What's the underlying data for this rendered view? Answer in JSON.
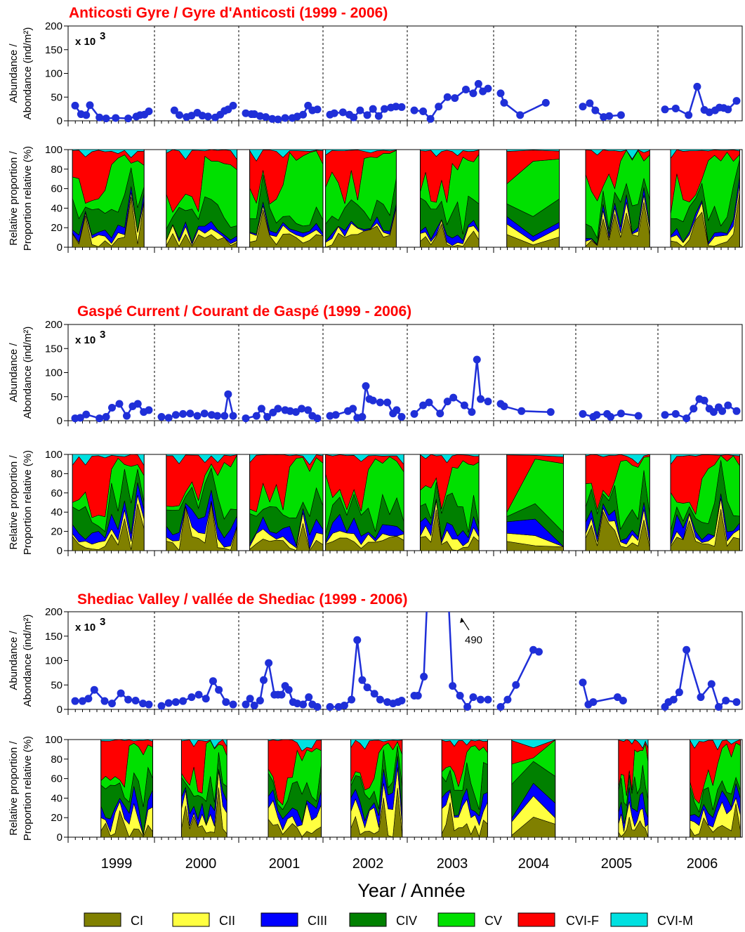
{
  "colors": {
    "CI": "#808000",
    "CII": "#ffff40",
    "CIII": "#0000ff",
    "CIV": "#008000",
    "CV": "#00e000",
    "CVI-F": "#ff0000",
    "CVI-M": "#00e0e0",
    "line": "#1f2fd8",
    "title": "#ff0000"
  },
  "chart_data": {
    "type": "line",
    "years": [
      "1999",
      "2000",
      "2001",
      "2002",
      "2003",
      "2004",
      "2005",
      "2006"
    ],
    "xlabel": "Year / Année",
    "abundance_ylabel": [
      "Abundance /",
      "Abondance (ind/m²)"
    ],
    "proportion_ylabel": [
      "Relative proportion /",
      "Proportion relative (%)"
    ],
    "abundance_ylim": [
      0,
      200
    ],
    "abundance_yticks": [
      "0",
      "50",
      "100",
      "150",
      "200"
    ],
    "proportion_ylim": [
      0,
      100
    ],
    "proportion_yticks": [
      "0",
      "20",
      "40",
      "60",
      "80",
      "100"
    ],
    "multiplier": "x 10",
    "multiplier_exp": "3",
    "legend": [
      "CI",
      "CII",
      "CIII",
      "CIV",
      "CV",
      "CVI-F",
      "CVI-M"
    ],
    "panels": [
      {
        "title": "Anticosti Gyre / Gyre d'Anticosti (1999 - 2006)",
        "abundance": [
          {
            "year": "1999",
            "x": [
              0.0,
              0.08,
              0.15,
              0.2,
              0.33,
              0.42,
              0.55,
              0.72,
              0.83,
              0.88,
              0.94,
              1.0
            ],
            "y": [
              32,
              14,
              12,
              33,
              7,
              5,
              6,
              5,
              9,
              12,
              13,
              20
            ]
          },
          {
            "year": "2000",
            "x": [
              0.18,
              0.25,
              0.35,
              0.42,
              0.5,
              0.57,
              0.65,
              0.75,
              0.82,
              0.88,
              0.93,
              1.0
            ],
            "y": [
              22,
              12,
              8,
              11,
              17,
              11,
              9,
              7,
              13,
              21,
              24,
              32
            ]
          },
          {
            "year": "2001",
            "x": [
              0.0,
              0.08,
              0.12,
              0.2,
              0.28,
              0.37,
              0.45,
              0.55,
              0.65,
              0.72,
              0.8,
              0.87,
              0.93,
              1.0
            ],
            "y": [
              16,
              14,
              14,
              10,
              8,
              4,
              3,
              6,
              6,
              9,
              13,
              32,
              22,
              24
            ]
          },
          {
            "year": "2002",
            "x": [
              0.0,
              0.06,
              0.18,
              0.27,
              0.33,
              0.42,
              0.52,
              0.6,
              0.68,
              0.76,
              0.85,
              0.92,
              1.0
            ],
            "y": [
              13,
              16,
              18,
              13,
              7,
              22,
              12,
              25,
              10,
              25,
              28,
              30,
              29
            ]
          },
          {
            "year": "2003",
            "x": [
              0.0,
              0.12,
              0.22,
              0.33,
              0.45,
              0.55,
              0.7,
              0.8,
              0.87,
              0.93,
              1.0
            ],
            "y": [
              22,
              20,
              4,
              30,
              50,
              48,
              66,
              58,
              78,
              62,
              68
            ]
          },
          {
            "year": "2004",
            "x": [
              0.0,
              0.05,
              0.28,
              0.65
            ],
            "y": [
              58,
              38,
              12,
              38
            ]
          },
          {
            "year": "2005",
            "x": [
              0.0,
              0.1,
              0.18,
              0.3,
              0.38,
              0.55
            ],
            "y": [
              30,
              37,
              22,
              8,
              10,
              12
            ]
          },
          {
            "year": "2006",
            "x": [
              0.0,
              0.15,
              0.33,
              0.45,
              0.55,
              0.62,
              0.7,
              0.76,
              0.82,
              0.88,
              1.0
            ],
            "y": [
              24,
              26,
              12,
              72,
              23,
              18,
              22,
              28,
              27,
              24,
              42
            ]
          }
        ]
      },
      {
        "title": "Gaspé Current / Courant de Gaspé (1999 - 2006)",
        "abundance": [
          {
            "year": "1999",
            "x": [
              0.0,
              0.07,
              0.15,
              0.33,
              0.42,
              0.5,
              0.6,
              0.7,
              0.78,
              0.85,
              0.93,
              1.0
            ],
            "y": [
              5,
              6,
              13,
              5,
              8,
              27,
              35,
              10,
              30,
              35,
              18,
              22
            ]
          },
          {
            "year": "2000",
            "x": [
              0.0,
              0.1,
              0.2,
              0.3,
              0.4,
              0.5,
              0.6,
              0.7,
              0.78,
              0.88,
              0.93,
              1.0
            ],
            "y": [
              8,
              6,
              12,
              14,
              15,
              10,
              15,
              12,
              10,
              10,
              55,
              10
            ]
          },
          {
            "year": "2001",
            "x": [
              0.0,
              0.15,
              0.22,
              0.3,
              0.38,
              0.45,
              0.55,
              0.62,
              0.7,
              0.78,
              0.87,
              0.93,
              1.0
            ],
            "y": [
              5,
              10,
              25,
              8,
              17,
              25,
              22,
              20,
              18,
              25,
              22,
              10,
              5
            ]
          },
          {
            "year": "2002",
            "x": [
              0.0,
              0.08,
              0.25,
              0.32,
              0.38,
              0.45,
              0.5,
              0.55,
              0.6,
              0.7,
              0.8,
              0.88,
              0.93,
              1.0
            ],
            "y": [
              10,
              12,
              20,
              25,
              6,
              8,
              72,
              45,
              42,
              38,
              38,
              15,
              22,
              8
            ]
          },
          {
            "year": "2003",
            "x": [
              0.0,
              0.12,
              0.2,
              0.35,
              0.45,
              0.53,
              0.68,
              0.78,
              0.85,
              0.9,
              1.0
            ],
            "y": [
              14,
              32,
              38,
              15,
              40,
              48,
              32,
              18,
              127,
              45,
              40
            ]
          },
          {
            "year": "2004",
            "x": [
              0.0,
              0.05,
              0.3,
              0.72
            ],
            "y": [
              35,
              30,
              20,
              18
            ]
          },
          {
            "year": "2005",
            "x": [
              0.0,
              0.15,
              0.2,
              0.35,
              0.4,
              0.55,
              0.8
            ],
            "y": [
              14,
              8,
              12,
              14,
              8,
              15,
              10
            ]
          },
          {
            "year": "2006",
            "x": [
              0.0,
              0.15,
              0.3,
              0.4,
              0.48,
              0.55,
              0.62,
              0.68,
              0.75,
              0.8,
              0.88,
              1.0
            ],
            "y": [
              12,
              14,
              5,
              25,
              45,
              42,
              25,
              18,
              28,
              20,
              32,
              20
            ]
          }
        ]
      },
      {
        "title": "Shediac Valley / vallée de Shediac (1999 - 2006)",
        "annotation": "490",
        "abundance": [
          {
            "year": "1999",
            "x": [
              0.0,
              0.1,
              0.18,
              0.26,
              0.4,
              0.5,
              0.62,
              0.72,
              0.82,
              0.92,
              1.0
            ],
            "y": [
              17,
              17,
              22,
              40,
              17,
              12,
              33,
              20,
              18,
              12,
              10
            ]
          },
          {
            "year": "2000",
            "x": [
              0.0,
              0.1,
              0.2,
              0.3,
              0.42,
              0.52,
              0.62,
              0.72,
              0.8,
              0.9,
              1.0
            ],
            "y": [
              7,
              13,
              15,
              17,
              25,
              30,
              22,
              58,
              40,
              15,
              10
            ]
          },
          {
            "year": "2001",
            "x": [
              0.0,
              0.06,
              0.12,
              0.2,
              0.25,
              0.32,
              0.4,
              0.45,
              0.5,
              0.55,
              0.6,
              0.66,
              0.72,
              0.8,
              0.88,
              0.93,
              1.0
            ],
            "y": [
              10,
              22,
              8,
              18,
              60,
              95,
              30,
              30,
              30,
              48,
              40,
              15,
              12,
              10,
              25,
              10,
              5
            ]
          },
          {
            "year": "2002",
            "x": [
              0.0,
              0.12,
              0.2,
              0.3,
              0.38,
              0.45,
              0.52,
              0.62,
              0.7,
              0.8,
              0.88,
              0.95,
              1.0
            ],
            "y": [
              5,
              5,
              8,
              20,
              142,
              60,
              45,
              32,
              20,
              15,
              12,
              15,
              18
            ]
          },
          {
            "year": "2003",
            "x": [
              0.0,
              0.05,
              0.13,
              0.25,
              0.38,
              0.52,
              0.62,
              0.72,
              0.8,
              0.9,
              1.0
            ],
            "y": [
              28,
              28,
              67,
              490,
              490,
              48,
              28,
              5,
              25,
              20,
              20
            ]
          },
          {
            "year": "2004",
            "x": [
              0.0,
              0.1,
              0.22,
              0.47,
              0.55
            ],
            "y": [
              5,
              20,
              50,
              122,
              118
            ]
          },
          {
            "year": "2005",
            "x": [
              0.0,
              0.08,
              0.15,
              0.5,
              0.58
            ],
            "y": [
              55,
              10,
              15,
              25,
              18
            ]
          },
          {
            "year": "2006",
            "x": [
              0.0,
              0.05,
              0.12,
              0.2,
              0.3,
              0.5,
              0.65,
              0.75,
              0.85,
              1.0
            ],
            "y": [
              5,
              15,
              20,
              35,
              122,
              25,
              52,
              5,
              18,
              15
            ]
          }
        ]
      }
    ]
  }
}
